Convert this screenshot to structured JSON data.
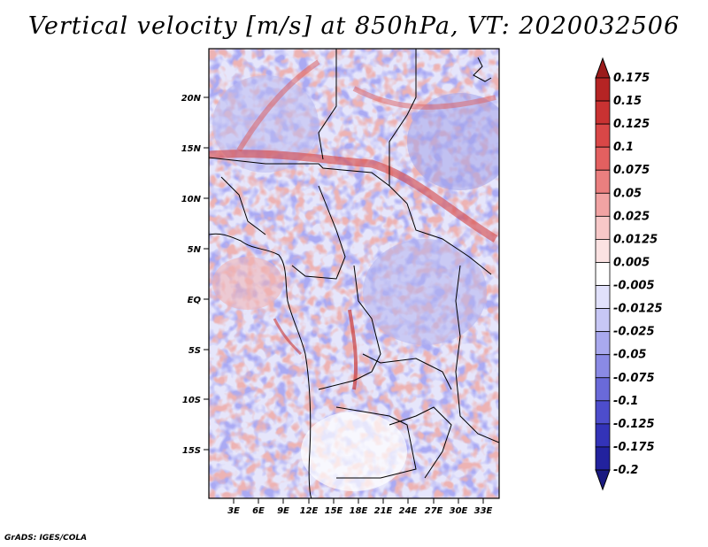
{
  "title": "Vertical velocity [m/s] at 850hPa, VT: 2020032506",
  "credit": "GrADS: IGES/COLA",
  "map": {
    "lon_ticks": [
      "3E",
      "6E",
      "9E",
      "12E",
      "15E",
      "18E",
      "21E",
      "24E",
      "27E",
      "30E",
      "33E"
    ],
    "lat_ticks": [
      "20N",
      "15N",
      "10N",
      "5N",
      "EQ",
      "5S",
      "10S",
      "15S"
    ]
  },
  "colorbar": {
    "labels": [
      "0.175",
      "0.15",
      "0.125",
      "0.1",
      "0.075",
      "0.05",
      "0.025",
      "0.0125",
      "0.005",
      "-0.005",
      "-0.0125",
      "-0.025",
      "-0.05",
      "-0.075",
      "-0.1",
      "-0.125",
      "-0.175",
      "-0.2"
    ],
    "colors": [
      "#9b1b1b",
      "#b52424",
      "#c93232",
      "#d94747",
      "#e36060",
      "#ea7f7f",
      "#f1a3a3",
      "#f7c8c8",
      "#fbe2e2",
      "#ffffff",
      "#e1e1fb",
      "#c7c7f5",
      "#a9a9ee",
      "#8a8ae5",
      "#6a6ad9",
      "#4d4dcc",
      "#3333b8",
      "#22229e",
      "#1a1a80"
    ]
  }
}
